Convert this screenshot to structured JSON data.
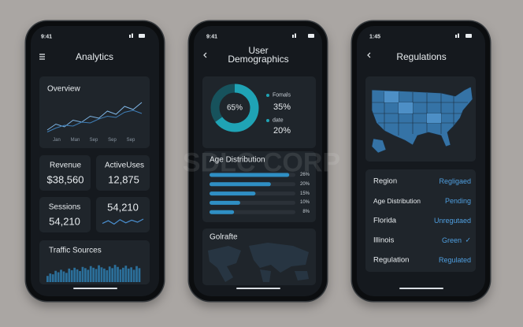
{
  "watermark": "SDLC CORP",
  "phones": [
    {
      "time": "9:41",
      "title": "Analytics",
      "overview": {
        "title": "Overview",
        "axis_labels": [
          "Jan",
          "Man",
          "Sep",
          "Sep",
          "Sep"
        ],
        "ylim": [
          0,
          100
        ],
        "series": [
          {
            "color": "#7fb6e6",
            "values": [
              10,
              25,
              18,
              35,
              30,
              45,
              40,
              58,
              50,
              70,
              62,
              80
            ]
          },
          {
            "color": "#3f7fb8",
            "values": [
              5,
              15,
              22,
              20,
              30,
              28,
              38,
              45,
              42,
              55,
              60,
              52
            ]
          }
        ]
      },
      "metrics": [
        {
          "label": "Revenue",
          "value": "$38,560"
        },
        {
          "label": "ActiveUses",
          "value": "12,875"
        },
        {
          "label": "Sessions",
          "value": "54,210"
        },
        {
          "value": "54,210",
          "sparkline": {
            "color": "#4a8fd0",
            "ylim": [
              0,
              100
            ],
            "values": [
              40,
              62,
              35,
              70,
              45,
              66,
              50,
              75
            ]
          }
        }
      ],
      "traffic": {
        "title": "Traffic Sources",
        "color": "#2b6f9a",
        "ylim": [
          0,
          100
        ],
        "values": [
          30,
          42,
          38,
          55,
          48,
          60,
          52,
          45,
          66,
          58,
          70,
          62,
          54,
          74,
          68,
          60,
          78,
          70,
          64,
          82,
          72,
          66,
          58,
          76,
          68,
          84,
          74,
          62,
          70,
          80,
          66,
          72,
          60,
          78,
          68
        ]
      }
    },
    {
      "time": "9:41",
      "title": "User Demographics",
      "donut": {
        "center_label": "65%",
        "values": [
          65,
          35
        ],
        "colors": [
          "#1fa3b5",
          "#17525c"
        ]
      },
      "legend": [
        {
          "name": "Fomals",
          "label": "35%"
        },
        {
          "name": "date",
          "label": "20%"
        }
      ],
      "age": {
        "title": "Age Distribution",
        "color": "#2f8fc4",
        "xlim": [
          0,
          28
        ],
        "values": [
          26,
          20,
          15,
          10,
          8
        ],
        "value_labels": [
          "26%",
          "20%",
          "15%",
          "10%",
          "8%"
        ]
      },
      "geo_title": "Golrafte"
    },
    {
      "time": "1:45",
      "title": "Regulations",
      "rows": [
        {
          "label": "Region",
          "value": "Regligaed"
        },
        {
          "label": "Age Distribution",
          "value": "Pending"
        },
        {
          "label": "Florida",
          "value": "Unregutaed"
        },
        {
          "label": "Illinois",
          "value": "Green",
          "check": "✓"
        },
        {
          "label": "Regulation",
          "value": "Regulated"
        }
      ]
    }
  ]
}
